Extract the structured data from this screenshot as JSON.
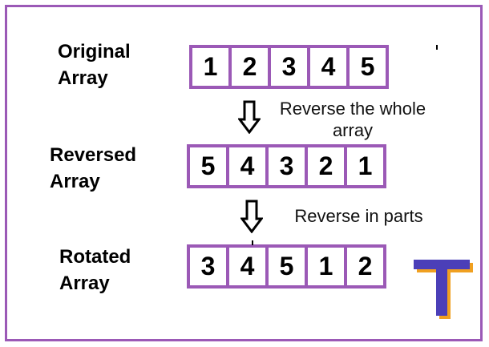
{
  "rows": [
    {
      "label_line1": "Original",
      "label_line2": "Array",
      "cells": [
        "1",
        "2",
        "3",
        "4",
        "5"
      ]
    },
    {
      "label_line1": "Reversed",
      "label_line2": "Array",
      "cells": [
        "5",
        "4",
        "3",
        "2",
        "1"
      ]
    },
    {
      "label_line1": "Rotated",
      "label_line2": "Array",
      "cells": [
        "3",
        "4",
        "5",
        "1",
        "2"
      ]
    }
  ],
  "steps": [
    {
      "text": "Reverse the whole array"
    },
    {
      "text": "Reverse in parts"
    }
  ],
  "colors": {
    "border": "#9b59b6",
    "logo_main": "#4b3fb8",
    "logo_shadow": "#f0a020"
  },
  "icons": {
    "down_arrow": "down-arrow-icon",
    "logo": "t-logo-icon"
  }
}
